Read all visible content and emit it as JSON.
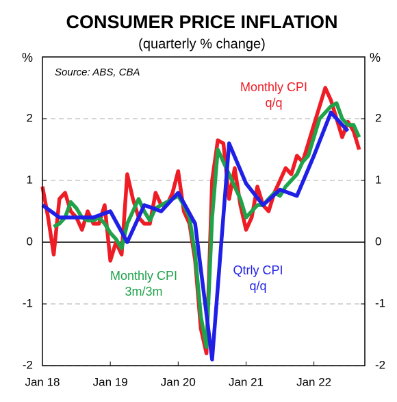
{
  "chart_data": {
    "type": "line",
    "title": "CONSUMER PRICE INFLATION",
    "subtitle": "(quarterly % change)",
    "y_label": "%",
    "y2_label": "%",
    "source": "Source: ABS, CBA",
    "annotations": [
      {
        "lines": [
          "Monthly CPI",
          "q/q"
        ],
        "color": "#ee1c25"
      },
      {
        "lines": [
          "Monthly CPI",
          "3m/3m"
        ],
        "color": "#1fa24a"
      },
      {
        "lines": [
          "Qtrly CPI",
          "q/q"
        ],
        "color": "#1f1fe6"
      }
    ],
    "x": [
      "2018-01",
      "2018-02",
      "2018-03",
      "2018-04",
      "2018-05",
      "2018-06",
      "2018-07",
      "2018-08",
      "2018-09",
      "2018-10",
      "2018-11",
      "2018-12",
      "2019-01",
      "2019-02",
      "2019-03",
      "2019-04",
      "2019-05",
      "2019-06",
      "2019-07",
      "2019-08",
      "2019-09",
      "2019-10",
      "2019-11",
      "2019-12",
      "2020-01",
      "2020-02",
      "2020-03",
      "2020-04",
      "2020-05",
      "2020-06",
      "2020-07",
      "2020-08",
      "2020-09",
      "2020-10",
      "2020-11",
      "2020-12",
      "2021-01",
      "2021-02",
      "2021-03",
      "2021-04",
      "2021-05",
      "2021-06",
      "2021-07",
      "2021-08",
      "2021-09",
      "2021-10",
      "2021-11",
      "2021-12",
      "2022-01",
      "2022-02",
      "2022-03",
      "2022-04",
      "2022-05",
      "2022-06",
      "2022-07",
      "2022-08",
      "2022-09"
    ],
    "xlim": [
      "2018-01",
      "2022-10"
    ],
    "xticks": [
      {
        "value": "2018-01",
        "label": "Jan 18"
      },
      {
        "value": "2019-01",
        "label": "Jan 19"
      },
      {
        "value": "2020-01",
        "label": "Jan 20"
      },
      {
        "value": "2021-01",
        "label": "Jan 21"
      },
      {
        "value": "2022-01",
        "label": "Jan 22"
      }
    ],
    "ylim": [
      -2,
      3
    ],
    "yticks": [
      -2,
      -1,
      0,
      1,
      2
    ],
    "grid": true,
    "series": [
      {
        "name": "Monthly CPI q/q",
        "color": "#ee1c25",
        "values": [
          0.9,
          0.4,
          -0.2,
          0.7,
          0.8,
          0.5,
          0.4,
          0.2,
          0.5,
          0.3,
          0.3,
          0.6,
          -0.3,
          0.0,
          -0.2,
          1.1,
          0.7,
          0.4,
          0.3,
          0.3,
          0.8,
          0.6,
          0.6,
          0.8,
          1.15,
          0.5,
          0.3,
          -0.3,
          -1.4,
          -1.8,
          1.0,
          1.65,
          1.6,
          0.7,
          1.2,
          0.6,
          0.2,
          0.4,
          0.9,
          0.6,
          0.5,
          0.8,
          1.0,
          1.2,
          1.1,
          1.4,
          1.3,
          1.6,
          1.9,
          2.2,
          2.5,
          2.3,
          2.0,
          1.7,
          1.95,
          1.8,
          1.5
        ]
      },
      {
        "name": "Monthly CPI 3m/3m",
        "color": "#1fa24a",
        "values": [
          null,
          null,
          0.25,
          0.3,
          0.4,
          0.65,
          0.55,
          0.4,
          0.35,
          0.35,
          0.4,
          0.3,
          0.15,
          0.05,
          -0.1,
          0.3,
          0.5,
          0.7,
          0.5,
          0.35,
          0.55,
          0.6,
          0.65,
          0.7,
          0.75,
          0.6,
          0.4,
          -0.2,
          -1.2,
          -1.7,
          0.4,
          1.5,
          1.3,
          1.1,
          0.9,
          0.7,
          0.4,
          0.5,
          0.6,
          0.6,
          0.7,
          0.8,
          0.75,
          0.9,
          1.0,
          1.1,
          1.3,
          1.4,
          1.7,
          2.0,
          2.1,
          2.2,
          2.25,
          2.0,
          1.9,
          1.9,
          1.7
        ]
      },
      {
        "name": "Qtrly CPI q/q",
        "color": "#1f1fe6",
        "x": [
          "2018-01",
          "2018-04",
          "2018-07",
          "2018-10",
          "2019-01",
          "2019-04",
          "2019-07",
          "2019-10",
          "2020-01",
          "2020-04",
          "2020-07",
          "2020-10",
          "2021-01",
          "2021-04",
          "2021-07",
          "2021-10",
          "2022-01",
          "2022-04",
          "2022-07"
        ],
        "values": [
          0.6,
          0.4,
          0.4,
          0.4,
          0.5,
          0.0,
          0.6,
          0.5,
          0.8,
          0.3,
          -1.9,
          1.6,
          0.95,
          0.6,
          0.85,
          0.75,
          1.4,
          2.1,
          1.8
        ]
      }
    ]
  }
}
